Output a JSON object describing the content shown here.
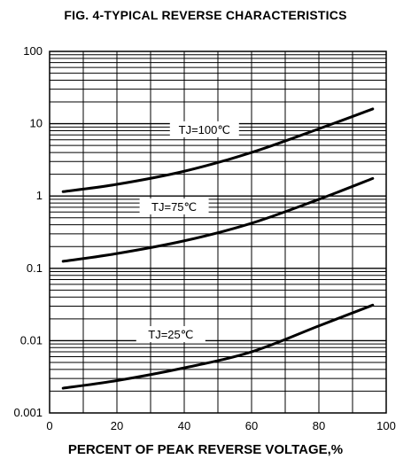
{
  "chart_data": {
    "type": "line",
    "title": "FIG. 4-TYPICAL REVERSE CHARACTERISTICS",
    "xlabel": "PERCENT OF PEAK REVERSE VOLTAGE,%",
    "ylabel": "",
    "xlim": [
      0,
      100
    ],
    "ylim": [
      0.001,
      100
    ],
    "yscale": "log",
    "grid": true,
    "x_ticks": [
      "0",
      "20",
      "40",
      "60",
      "80",
      "100"
    ],
    "y_ticks": [
      "100",
      "10",
      "1",
      "0.1",
      "0.01",
      "0.001"
    ],
    "series": [
      {
        "name": "TJ=100℃",
        "x": [
          4,
          20,
          40,
          60,
          80,
          96
        ],
        "y": [
          1.15,
          1.45,
          2.2,
          4.0,
          8.5,
          16
        ]
      },
      {
        "name": "TJ=75℃",
        "x": [
          4,
          20,
          40,
          60,
          80,
          96
        ],
        "y": [
          0.125,
          0.16,
          0.24,
          0.42,
          0.9,
          1.75
        ]
      },
      {
        "name": "TJ=25℃",
        "x": [
          4,
          20,
          40,
          60,
          80,
          96
        ],
        "y": [
          0.0022,
          0.0028,
          0.0042,
          0.007,
          0.016,
          0.031
        ]
      }
    ],
    "colors": {
      "line": "#000000",
      "grid": "#000000",
      "background": "#ffffff"
    }
  }
}
